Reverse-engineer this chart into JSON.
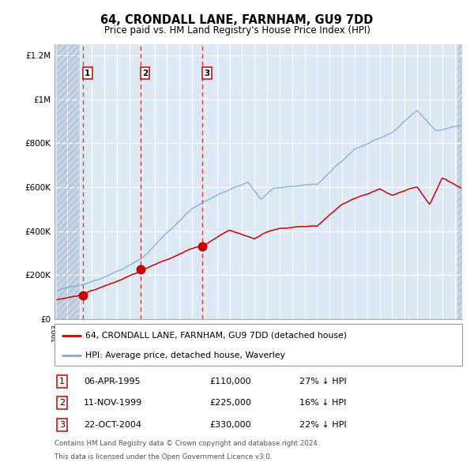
{
  "title": "64, CRONDALL LANE, FARNHAM, GU9 7DD",
  "subtitle": "Price paid vs. HM Land Registry's House Price Index (HPI)",
  "legend_line1": "64, CRONDALL LANE, FARNHAM, GU9 7DD (detached house)",
  "legend_line2": "HPI: Average price, detached house, Waverley",
  "transactions": [
    {
      "num": 1,
      "date": "06-APR-1995",
      "price": 110000,
      "hpi_diff": "27% ↓ HPI",
      "year": 1995.27
    },
    {
      "num": 2,
      "date": "11-NOV-1999",
      "price": 225000,
      "hpi_diff": "16% ↓ HPI",
      "year": 1999.86
    },
    {
      "num": 3,
      "date": "22-OCT-2004",
      "price": 330000,
      "hpi_diff": "22% ↓ HPI",
      "year": 2004.81
    }
  ],
  "footnote1": "Contains HM Land Registry data © Crown copyright and database right 2024.",
  "footnote2": "This data is licensed under the Open Government Licence v3.0.",
  "red_color": "#cc0000",
  "blue_color": "#7aade0",
  "bg_color": "#dce9f5",
  "hatch_bg": "#c5d5e5",
  "grid_color": "#ffffff",
  "dashed_color": "#ee3333",
  "ylim": [
    0,
    1250000
  ],
  "xlim_start": 1993.2,
  "xlim_end": 2025.6
}
